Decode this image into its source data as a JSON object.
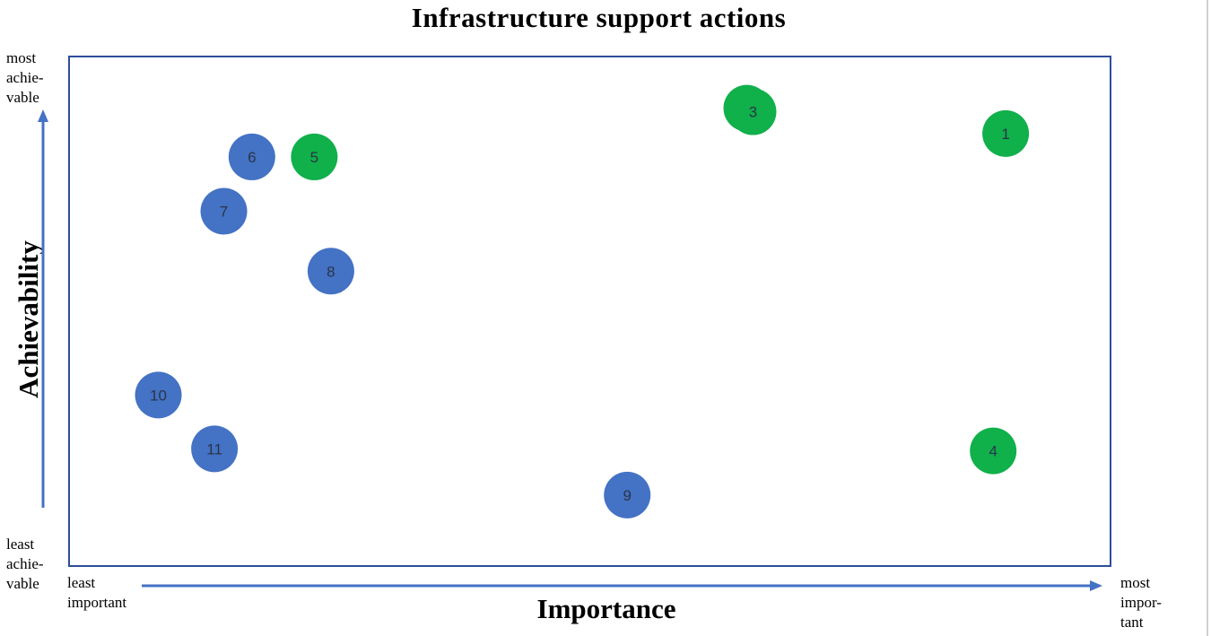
{
  "labels": {
    "most_achievable": [
      "most",
      "achie-",
      "vable"
    ],
    "least_achievable": [
      "least",
      "achie-",
      "vable"
    ],
    "least_important": [
      "least",
      "important"
    ],
    "most_important": [
      "most",
      "impor-",
      "tant"
    ]
  },
  "chart_data": {
    "type": "scatter",
    "title": "Infrastructure support actions",
    "xlabel": "Importance",
    "ylabel": "Achievability",
    "xlim": [
      0,
      100
    ],
    "ylim": [
      0,
      100
    ],
    "grid": false,
    "legend": "none",
    "colors": {
      "green": "#10b04b",
      "blue": "#4472c4",
      "axis": "#2e4d9a"
    },
    "points": [
      {
        "label": "1",
        "x": 90.0,
        "y": 85.0,
        "color": "green"
      },
      {
        "label": "2",
        "x": 65.1,
        "y": 90.0,
        "color": "green"
      },
      {
        "label": "3",
        "x": 65.7,
        "y": 89.3,
        "color": "green"
      },
      {
        "label": "4",
        "x": 88.8,
        "y": 22.5,
        "color": "green"
      },
      {
        "label": "5",
        "x": 23.5,
        "y": 80.4,
        "color": "green"
      },
      {
        "label": "6",
        "x": 17.5,
        "y": 80.4,
        "color": "blue"
      },
      {
        "label": "7",
        "x": 14.8,
        "y": 69.7,
        "color": "blue"
      },
      {
        "label": "8",
        "x": 25.1,
        "y": 57.9,
        "color": "blue"
      },
      {
        "label": "9",
        "x": 53.6,
        "y": 13.8,
        "color": "blue"
      },
      {
        "label": "10",
        "x": 8.5,
        "y": 33.5,
        "color": "blue"
      },
      {
        "label": "11",
        "x": 13.9,
        "y": 22.9,
        "color": "blue"
      }
    ]
  }
}
